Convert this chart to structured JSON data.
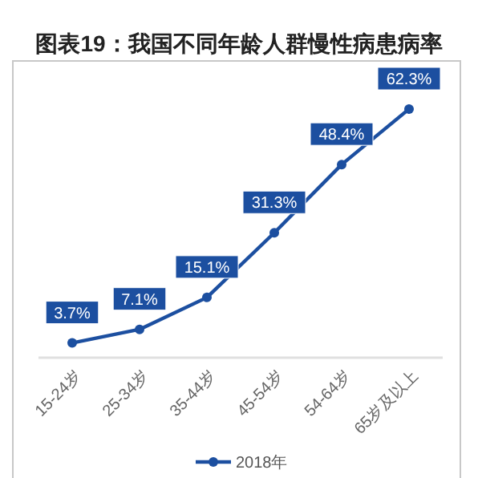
{
  "chart_data": {
    "type": "line",
    "title": "图表19：我国不同年龄人群慢性病患病率",
    "categories": [
      "15-24岁",
      "25-34岁",
      "35-44岁",
      "45-54岁",
      "54-64岁",
      "65岁及以上"
    ],
    "series": [
      {
        "name": "2018年",
        "color": "#1c4fa0",
        "values": [
          3.7,
          7.1,
          15.1,
          31.3,
          48.4,
          62.3
        ],
        "value_labels": [
          "3.7%",
          "7.1%",
          "15.1%",
          "31.3%",
          "48.4%",
          "62.3%"
        ]
      }
    ],
    "marker": "circle",
    "line_style": "solid",
    "legend": "bottom"
  }
}
